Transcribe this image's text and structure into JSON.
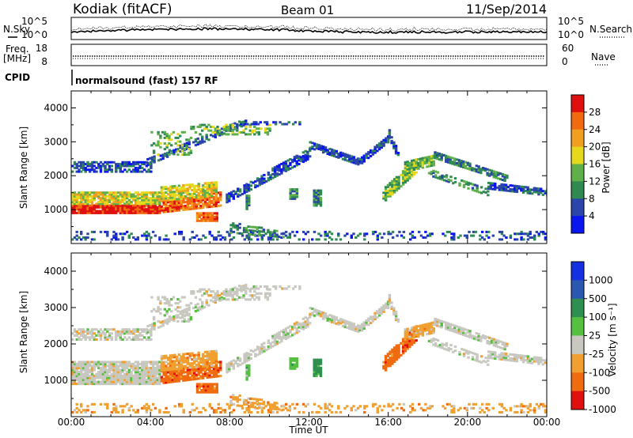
{
  "header": {
    "station": "Kodiak (fitACF)",
    "beam": "Beam 01",
    "date": "11/Sep/2014"
  },
  "side_labels": {
    "nsky": "N.Sky",
    "nsearch": "N.Search",
    "freq_line1": "Freq.",
    "freq_line2": "[MHz]",
    "nave": "Nave",
    "cpid": "CPID"
  },
  "noise_panel": {
    "left_ticks": [
      "10^5",
      "10^0"
    ],
    "right_ticks": [
      "10^5",
      "10^0"
    ]
  },
  "freq_panel": {
    "left_ticks": [
      "18",
      "8"
    ],
    "right_ticks": [
      "60",
      "0"
    ]
  },
  "cpid_panel": {
    "text": "normalsound (fast) 157 RF"
  },
  "colors": {
    "power_scale": [
      "#0a16f0",
      "#2b45a8",
      "#2f8a52",
      "#5fb04a",
      "#e6d81c",
      "#f0a020",
      "#f26a10",
      "#e01010"
    ],
    "velocity_scale": [
      "#1530e0",
      "#2a58b0",
      "#2f8f50",
      "#55c040",
      "#c8c8c0",
      "#f0a030",
      "#f06a10",
      "#e01010"
    ]
  },
  "chart_data": [
    {
      "type": "heatmap",
      "name": "Power",
      "ylabel": "Slant Range [km]",
      "ylim": [
        0,
        4500
      ],
      "y_ticks": [
        "1000",
        "2000",
        "3000",
        "4000"
      ],
      "xlim": [
        0,
        24
      ],
      "colorbar_label": "Power [dB]",
      "colorbar_ticks": [
        "4",
        "8",
        "12",
        "16",
        "20",
        "24",
        "28"
      ]
    },
    {
      "type": "heatmap",
      "name": "Velocity",
      "ylabel": "Slant Range [km]",
      "ylim": [
        0,
        4500
      ],
      "y_ticks": [
        "1000",
        "2000",
        "3000",
        "4000"
      ],
      "xlim": [
        0,
        24
      ],
      "xlabel": "Time UT",
      "x_ticks": [
        "00:00",
        "04:00",
        "08:00",
        "12:00",
        "16:00",
        "20:00",
        "00:00"
      ],
      "colorbar_label": "Velocity [m s⁻¹]",
      "colorbar_ticks": [
        "1000",
        "500",
        "100",
        "25",
        "-25",
        "-100",
        "-500",
        "-1000"
      ]
    }
  ]
}
